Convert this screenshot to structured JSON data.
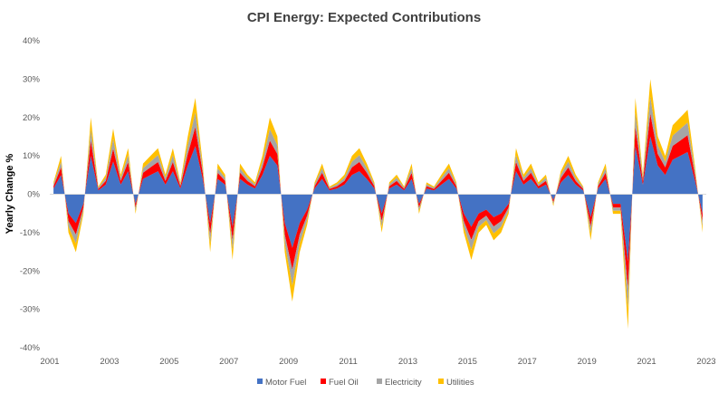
{
  "chart_data": {
    "type": "area",
    "stacked": true,
    "title": "CPI Energy: Expected Contributions",
    "xlabel": "",
    "ylabel": "Yearly Change %",
    "ylim": [
      -40,
      40
    ],
    "yticks": [
      "40%",
      "30%",
      "20%",
      "10%",
      "0%",
      "-10%",
      "-20%",
      "-30%",
      "-40%"
    ],
    "ytick_values": [
      40,
      30,
      20,
      10,
      0,
      -10,
      -20,
      -30,
      -40
    ],
    "xticks": [
      "2001",
      "2003",
      "2005",
      "2007",
      "2009",
      "2011",
      "2013",
      "2015",
      "2017",
      "2019",
      "2021",
      "2023"
    ],
    "xlim": [
      2001,
      2023
    ],
    "x_start": 2001,
    "x_frequency": "quarterly",
    "grid": false,
    "legend_position": "bottom",
    "series": [
      {
        "name": "Motor Fuel",
        "color": "#4472C4",
        "values": [
          1.5,
          5,
          -5,
          -7.5,
          -2.5,
          10,
          1,
          2.5,
          8.5,
          2.5,
          6,
          -2.5,
          4,
          5,
          6,
          2.5,
          6,
          1.5,
          7.5,
          12.5,
          4,
          -7.5,
          4,
          2.5,
          -8.5,
          4,
          2.5,
          1.5,
          5,
          10,
          7.5,
          -7.5,
          -14,
          -7.5,
          -4,
          1.5,
          4,
          1,
          1.5,
          2.5,
          5,
          6,
          4,
          1.5,
          -5,
          1.5,
          2.5,
          1,
          4,
          -2.5,
          1.5,
          1,
          2.5,
          4,
          1.5,
          -5,
          -8.5,
          -5,
          -4,
          -6,
          -5,
          -2.5,
          6,
          2.5,
          4,
          1.5,
          2.5,
          -1.5,
          3,
          5,
          2.5,
          1,
          -6,
          1.5,
          4,
          -2.5,
          -2.5,
          -17.5,
          12.5,
          2.5,
          15,
          7.5,
          5,
          9,
          10,
          11,
          3.5,
          -5
        ]
      },
      {
        "name": "Fuel Oil",
        "color": "#FF0000",
        "values": [
          0.6,
          2,
          -2,
          -3,
          -1,
          4,
          0.4,
          1,
          3.4,
          1,
          2.4,
          -1,
          1.6,
          2,
          2.4,
          1,
          2.4,
          0.6,
          3,
          5,
          1.6,
          -3,
          1.6,
          1,
          -3.4,
          1.6,
          1,
          0.6,
          2,
          4,
          3,
          -3,
          -5.6,
          -3,
          -1.6,
          0.6,
          1.6,
          0.4,
          0.6,
          1,
          2,
          2.4,
          1.6,
          0.6,
          -2,
          0.6,
          1,
          0.4,
          1.6,
          -1,
          0.6,
          0.4,
          1,
          1.6,
          0.6,
          -2,
          -3.4,
          -2,
          -1.6,
          -2.4,
          -2,
          -1,
          2.4,
          1,
          1.6,
          0.6,
          1,
          -0.6,
          1.2,
          2,
          1,
          0.4,
          -2.4,
          0.6,
          1.6,
          -1,
          -1,
          -7,
          5,
          1,
          6,
          3,
          2,
          3.6,
          4,
          4.4,
          1.4,
          -2
        ]
      },
      {
        "name": "Electricity",
        "color": "#A5A5A5",
        "values": [
          0.5,
          1.5,
          -1.5,
          -2.3,
          -0.8,
          3,
          0.3,
          0.8,
          2.6,
          0.8,
          1.8,
          -0.8,
          1.2,
          1.5,
          1.8,
          0.8,
          1.8,
          0.5,
          2.3,
          3.8,
          1.2,
          -2.3,
          1.2,
          0.8,
          -2.6,
          1.2,
          0.8,
          0.5,
          1.5,
          3,
          2.3,
          -2.3,
          -4.2,
          -2.3,
          -1.2,
          0.5,
          1.2,
          0.3,
          0.5,
          0.8,
          1.5,
          1.8,
          1.2,
          0.5,
          -1.5,
          0.5,
          0.8,
          0.3,
          1.2,
          -0.8,
          0.5,
          0.3,
          0.8,
          1.2,
          0.5,
          -1.5,
          -2.6,
          -1.5,
          -1.2,
          -1.8,
          -1.5,
          -0.8,
          1.8,
          0.8,
          1.2,
          0.5,
          0.8,
          -0.5,
          0.9,
          1.5,
          0.8,
          0.3,
          -1.8,
          0.5,
          1.2,
          -0.8,
          -0.8,
          -5.3,
          3.8,
          0.8,
          4.5,
          2.3,
          1.5,
          2.7,
          3,
          3.3,
          1.1,
          -1.5
        ]
      },
      {
        "name": "Utilities",
        "color": "#FFC000",
        "values": [
          0.5,
          1.5,
          -1.5,
          -2.3,
          -0.8,
          3,
          0.3,
          0.8,
          2.6,
          0.8,
          1.8,
          -0.8,
          1.2,
          1.5,
          1.8,
          0.8,
          1.8,
          0.5,
          2.3,
          3.8,
          1.2,
          -2.3,
          1.2,
          0.8,
          -2.6,
          1.2,
          0.8,
          0.5,
          1.5,
          3,
          2.3,
          -2.3,
          -4.2,
          -2.3,
          -1.2,
          0.5,
          1.2,
          0.3,
          0.5,
          0.8,
          1.5,
          1.8,
          1.2,
          0.5,
          -1.5,
          0.5,
          0.8,
          0.3,
          1.2,
          -0.8,
          0.5,
          0.3,
          0.8,
          1.2,
          0.5,
          -1.5,
          -2.6,
          -1.5,
          -1.2,
          -1.8,
          -1.5,
          -0.8,
          1.8,
          0.8,
          1.2,
          0.5,
          0.8,
          -0.5,
          0.9,
          1.5,
          0.8,
          0.3,
          -1.8,
          0.5,
          1.2,
          -0.8,
          -0.8,
          -5.3,
          3.8,
          0.8,
          4.5,
          2.3,
          1.5,
          2.7,
          3,
          3.3,
          1.1,
          -1.5
        ]
      }
    ]
  }
}
